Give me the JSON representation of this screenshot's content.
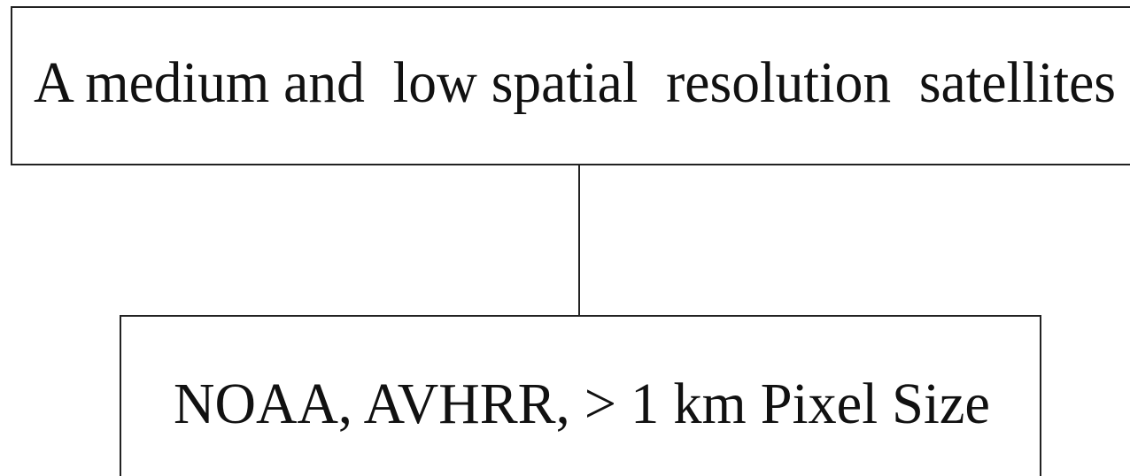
{
  "nodes": [
    {
      "label": "A medium and  low spatial  resolution  satellites"
    },
    {
      "label": "NOAA, AVHRR, > 1 km Pixel Size"
    }
  ]
}
